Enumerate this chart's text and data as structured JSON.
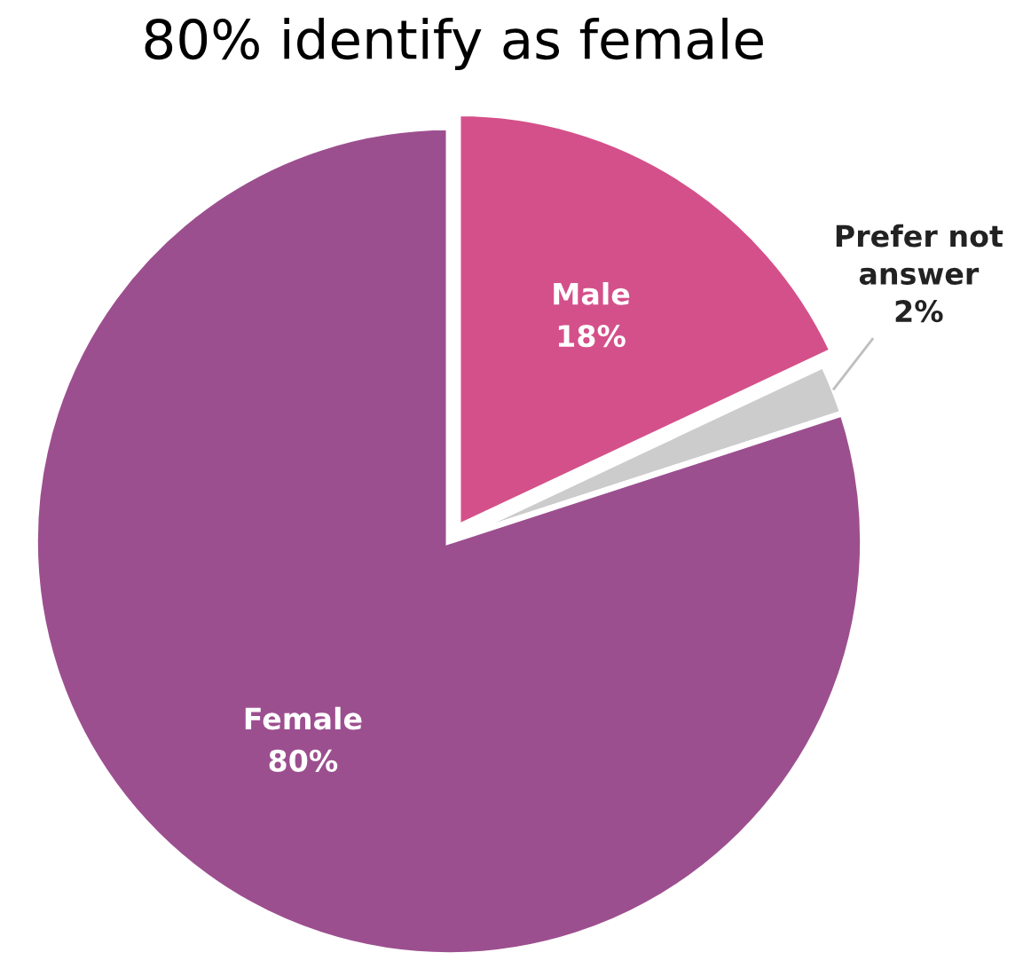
{
  "chart_data": {
    "type": "pie",
    "title": "80% identify as female",
    "categories": [
      "Male",
      "Prefer not\nanswer",
      "Female"
    ],
    "values": [
      18,
      2,
      80
    ],
    "value_labels": [
      "18%",
      "2%",
      "80%"
    ],
    "colors": [
      "#d4508a",
      "#cccccc",
      "#9c4f8f"
    ],
    "legend": false
  }
}
